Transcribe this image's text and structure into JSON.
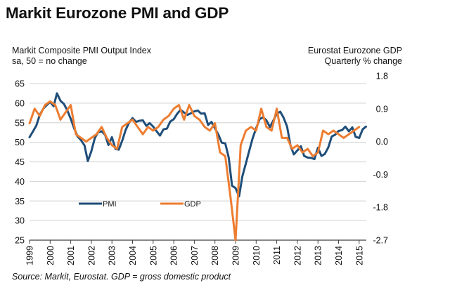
{
  "header": {
    "title": "Markit Eurozone PMI and GDP",
    "left_axis_title_line1": "Markit Composite PMI Output Index",
    "left_axis_title_line2": "sa, 50 = no change",
    "right_axis_title_line1": "Eurostat Eurozone GDP",
    "right_axis_title_line2": "Quarterly % change"
  },
  "footer": {
    "source": "Source: Markit, Eurostat. GDP = gross domestic product"
  },
  "colors": {
    "pmi": "#1f4e79",
    "gdp": "#ed7d31",
    "grid": "#d9d9d9",
    "axis": "#404040"
  },
  "chart_data": {
    "type": "line",
    "title": "Markit Eurozone PMI and GDP",
    "xlabel": "",
    "ylabel": "Markit Composite PMI Output Index, sa, 50 = no change",
    "y2label": "Eurostat Eurozone GDP, Quarterly % change",
    "ylim": [
      25,
      65
    ],
    "y2lim": [
      -2.7,
      1.8
    ],
    "yticks": [
      "65",
      "60",
      "55",
      "50",
      "45",
      "40",
      "35",
      "30",
      "25"
    ],
    "y2ticks": [
      "1.8",
      "0.9",
      "0.0",
      "-0.9",
      "-1.8",
      "-2.7"
    ],
    "xticks": [
      "1999",
      "2000",
      "2001",
      "2002",
      "2003",
      "2004",
      "2005",
      "2006",
      "2007",
      "2008",
      "2009",
      "2010",
      "2011",
      "2012",
      "2013",
      "2014",
      "2015"
    ],
    "xlim": [
      1999,
      2015.5
    ],
    "grid": true,
    "legend": {
      "position": "lower-left-center",
      "entries": [
        "PMI",
        "GDP"
      ]
    },
    "series": [
      {
        "name": "PMI",
        "axis": "left",
        "x": [
          1999.0,
          1999.17,
          1999.33,
          1999.5,
          1999.67,
          1999.83,
          2000.0,
          2000.17,
          2000.33,
          2000.5,
          2000.67,
          2000.83,
          2001.0,
          2001.17,
          2001.33,
          2001.5,
          2001.67,
          2001.83,
          2002.0,
          2002.17,
          2002.33,
          2002.5,
          2002.67,
          2002.83,
          2003.0,
          2003.17,
          2003.33,
          2003.5,
          2003.67,
          2003.83,
          2004.0,
          2004.17,
          2004.33,
          2004.5,
          2004.67,
          2004.83,
          2005.0,
          2005.17,
          2005.33,
          2005.5,
          2005.67,
          2005.83,
          2006.0,
          2006.17,
          2006.33,
          2006.5,
          2006.67,
          2006.83,
          2007.0,
          2007.17,
          2007.33,
          2007.5,
          2007.67,
          2007.83,
          2008.0,
          2008.17,
          2008.33,
          2008.5,
          2008.67,
          2008.83,
          2009.0,
          2009.17,
          2009.33,
          2009.5,
          2009.67,
          2009.83,
          2010.0,
          2010.17,
          2010.33,
          2010.5,
          2010.67,
          2010.83,
          2011.0,
          2011.17,
          2011.33,
          2011.5,
          2011.67,
          2011.83,
          2012.0,
          2012.17,
          2012.33,
          2012.5,
          2012.67,
          2012.83,
          2013.0,
          2013.17,
          2013.33,
          2013.5,
          2013.67,
          2013.83,
          2014.0,
          2014.17,
          2014.33,
          2014.5,
          2014.67,
          2014.83,
          2015.0,
          2015.17,
          2015.33
        ],
        "values": [
          51.3,
          52.8,
          54.3,
          57.0,
          58.6,
          59.5,
          60.3,
          59.2,
          62.5,
          60.6,
          59.8,
          58.2,
          56.0,
          53.5,
          51.5,
          50.5,
          49.2,
          45.2,
          47.7,
          51.1,
          52.6,
          52.8,
          51.9,
          49.3,
          51.3,
          48.3,
          48.1,
          50.4,
          53.2,
          55.0,
          56.2,
          55.2,
          55.5,
          55.6,
          54.2,
          54.9,
          54.0,
          52.8,
          51.7,
          53.3,
          53.5,
          55.3,
          55.9,
          57.3,
          58.3,
          57.6,
          57.0,
          57.4,
          57.9,
          58.1,
          57.3,
          57.4,
          54.4,
          55.2,
          53.6,
          51.9,
          49.9,
          49.7,
          46.1,
          38.9,
          38.3,
          36.2,
          41.3,
          44.6,
          47.9,
          51.0,
          53.6,
          55.9,
          56.4,
          55.6,
          53.9,
          55.5,
          57.3,
          57.8,
          56.3,
          54.0,
          49.1,
          46.9,
          47.9,
          49.0,
          46.5,
          46.1,
          46.0,
          45.7,
          48.6,
          46.5,
          47.0,
          48.7,
          51.5,
          51.9,
          52.9,
          53.1,
          54.0,
          52.8,
          53.8,
          51.4,
          51.1,
          53.3,
          54.0
        ]
      },
      {
        "name": "GDP",
        "axis": "right",
        "x": [
          1999.0,
          1999.25,
          1999.5,
          1999.75,
          2000.0,
          2000.25,
          2000.5,
          2000.75,
          2001.0,
          2001.25,
          2001.5,
          2001.75,
          2002.0,
          2002.25,
          2002.5,
          2002.75,
          2003.0,
          2003.25,
          2003.5,
          2003.75,
          2004.0,
          2004.25,
          2004.5,
          2004.75,
          2005.0,
          2005.25,
          2005.5,
          2005.75,
          2006.0,
          2006.25,
          2006.5,
          2006.75,
          2007.0,
          2007.25,
          2007.5,
          2007.75,
          2008.0,
          2008.25,
          2008.5,
          2008.75,
          2009.0,
          2009.25,
          2009.5,
          2009.75,
          2010.0,
          2010.25,
          2010.5,
          2010.75,
          2011.0,
          2011.25,
          2011.5,
          2011.75,
          2012.0,
          2012.25,
          2012.5,
          2012.75,
          2013.0,
          2013.25,
          2013.5,
          2013.75,
          2014.0,
          2014.25,
          2014.5,
          2014.75,
          2015.0
        ],
        "values": [
          0.5,
          0.9,
          0.7,
          1.0,
          1.1,
          1.0,
          0.6,
          0.8,
          1.0,
          0.2,
          0.1,
          0.0,
          0.1,
          0.2,
          0.4,
          0.1,
          -0.1,
          -0.2,
          0.4,
          0.5,
          0.6,
          0.4,
          0.2,
          0.4,
          0.3,
          0.4,
          0.6,
          0.7,
          0.9,
          1.0,
          0.6,
          1.0,
          0.7,
          0.6,
          0.4,
          0.3,
          0.5,
          -0.3,
          -0.4,
          -1.5,
          -2.7,
          -0.1,
          0.3,
          0.4,
          0.3,
          0.9,
          0.4,
          0.3,
          0.9,
          0.1,
          0.1,
          -0.2,
          -0.1,
          -0.3,
          -0.2,
          -0.4,
          -0.3,
          0.3,
          0.2,
          0.3,
          0.2,
          0.1,
          0.2,
          0.3,
          0.4
        ]
      }
    ]
  }
}
